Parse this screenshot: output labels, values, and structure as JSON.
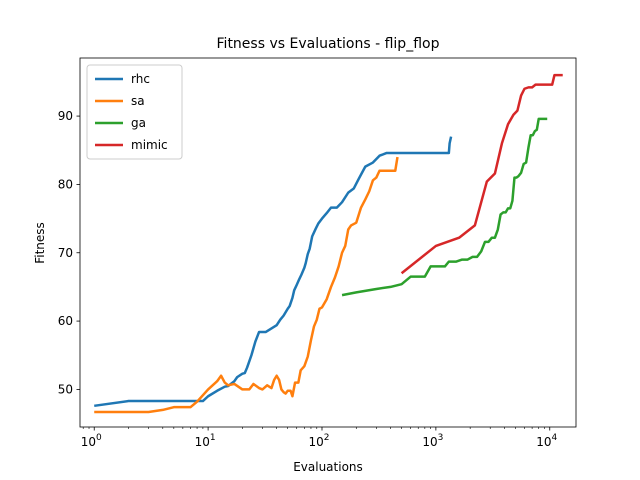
{
  "chart_data": {
    "type": "line",
    "title": "Fitness vs Evaluations - flip_flop",
    "xlabel": "Evaluations",
    "ylabel": "Fitness",
    "xscale": "log",
    "xlim": [
      0.75,
      17000
    ],
    "ylim": [
      44.5,
      98.5
    ],
    "xticks": [
      1,
      10,
      100,
      1000,
      10000
    ],
    "xtick_labels": [
      "10^0",
      "10^1",
      "10^2",
      "10^3",
      "10^4"
    ],
    "yticks": [
      50,
      60,
      70,
      80,
      90
    ],
    "grid": false,
    "legend_position": "top-left",
    "series": [
      {
        "name": "rhc",
        "color": "#1f77b4",
        "x": [
          1,
          2,
          3,
          5,
          8,
          9,
          10,
          12,
          14,
          15,
          17,
          18,
          20,
          21,
          22,
          24,
          26,
          28,
          32,
          40,
          43,
          46,
          50,
          52,
          55,
          57,
          60,
          63,
          66,
          70,
          72,
          75,
          78,
          82,
          88,
          93,
          100,
          110,
          120,
          135,
          150,
          170,
          190,
          210,
          240,
          280,
          320,
          370,
          420,
          500,
          600,
          800,
          1000,
          1300,
          1320,
          1360
        ],
        "y": [
          47.6,
          48.3,
          48.3,
          48.3,
          48.3,
          48.3,
          49.0,
          49.8,
          50.4,
          50.5,
          51.2,
          51.8,
          52.3,
          52.4,
          53.2,
          55.0,
          57.0,
          58.4,
          58.4,
          59.4,
          60.2,
          60.8,
          61.8,
          62.2,
          63.4,
          64.5,
          65.3,
          66.1,
          66.8,
          67.8,
          68.5,
          69.8,
          70.6,
          72.4,
          73.5,
          74.3,
          75.0,
          75.8,
          76.6,
          76.6,
          77.4,
          78.8,
          79.4,
          80.8,
          82.6,
          83.2,
          84.2,
          84.6,
          84.6,
          84.6,
          84.6,
          84.6,
          84.6,
          84.6,
          86.0,
          87.0
        ]
      },
      {
        "name": "sa",
        "color": "#ff7f0e",
        "x": [
          1,
          2,
          3,
          4,
          5,
          7,
          8,
          10,
          12,
          13,
          14,
          15,
          17,
          20,
          23,
          25,
          28,
          30,
          33,
          36,
          38,
          40,
          42,
          44,
          46,
          48,
          50,
          53,
          55,
          58,
          62,
          65,
          70,
          75,
          80,
          85,
          90,
          95,
          100,
          110,
          120,
          130,
          140,
          150,
          160,
          170,
          180,
          200,
          220,
          240,
          260,
          280,
          300,
          320,
          350,
          380,
          410,
          440,
          460
        ],
        "y": [
          46.7,
          46.7,
          46.7,
          47.0,
          47.4,
          47.4,
          48.2,
          50.0,
          51.2,
          52.0,
          51.0,
          50.6,
          50.8,
          50.0,
          50.0,
          50.8,
          50.2,
          50.0,
          50.6,
          50.2,
          51.4,
          52.0,
          51.4,
          50.0,
          49.6,
          49.4,
          49.8,
          49.8,
          49.0,
          51.0,
          51.0,
          52.8,
          53.4,
          54.8,
          57.2,
          59.2,
          60.2,
          61.8,
          62.0,
          63.2,
          65.0,
          66.4,
          68.0,
          70.0,
          71.0,
          73.4,
          74.0,
          74.4,
          76.6,
          77.8,
          79.0,
          80.6,
          81.0,
          82.0,
          82.0,
          82.0,
          82.0,
          82.0,
          84.0
        ]
      },
      {
        "name": "ga",
        "color": "#2ca02c",
        "x": [
          150,
          200,
          300,
          400,
          500,
          600,
          700,
          800,
          900,
          1000,
          1100,
          1200,
          1300,
          1400,
          1500,
          1700,
          1900,
          2100,
          2300,
          2500,
          2700,
          2900,
          3100,
          3300,
          3500,
          3700,
          3900,
          4100,
          4300,
          4500,
          4700,
          4900,
          5100,
          5300,
          5600,
          5900,
          6200,
          6500,
          6800,
          7100,
          7400,
          7700,
          8000,
          8500,
          9000,
          9500
        ],
        "y": [
          63.8,
          64.2,
          64.7,
          65.0,
          65.4,
          66.5,
          66.5,
          66.5,
          68.0,
          68.0,
          68.0,
          68.0,
          68.7,
          68.7,
          68.7,
          69.0,
          69.0,
          69.4,
          69.4,
          70.2,
          71.6,
          71.6,
          72.2,
          72.2,
          73.4,
          75.6,
          75.9,
          75.9,
          76.5,
          76.5,
          77.6,
          81.0,
          81.0,
          81.2,
          81.7,
          83.0,
          83.2,
          85.4,
          87.2,
          87.2,
          87.8,
          88.0,
          89.6,
          89.6,
          89.6,
          89.6
        ]
      },
      {
        "name": "mimic",
        "color": "#d62728",
        "x": [
          500,
          1000,
          1600,
          2200,
          2800,
          3300,
          3800,
          4300,
          4800,
          5200,
          5600,
          6000,
          6500,
          7000,
          7500,
          8000,
          8500,
          9000,
          9500,
          10500,
          11000,
          12000,
          13000
        ],
        "y": [
          67.0,
          71.0,
          72.2,
          74.0,
          80.4,
          81.6,
          86.0,
          88.8,
          90.2,
          90.8,
          93.0,
          94.0,
          94.2,
          94.2,
          94.6,
          94.6,
          94.6,
          94.6,
          94.6,
          94.6,
          96.0,
          96.0,
          96.0
        ]
      }
    ]
  }
}
